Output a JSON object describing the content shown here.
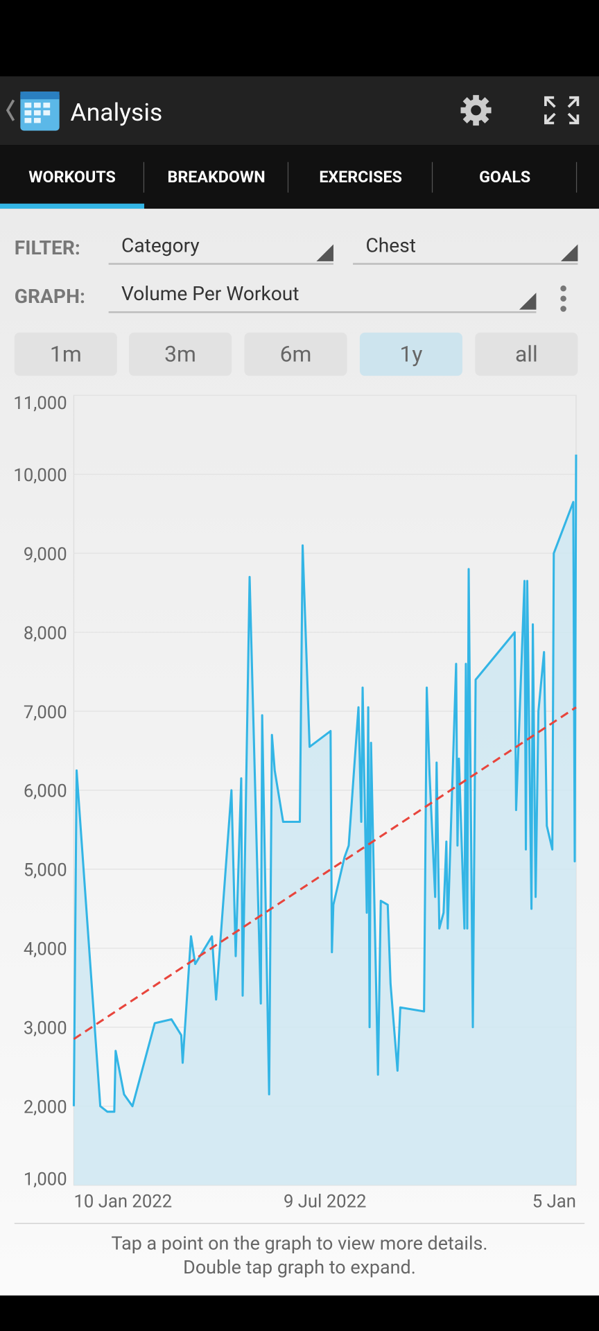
{
  "app_bar": {
    "title": "Analysis"
  },
  "tabs": [
    "WORKOUTS",
    "BREAKDOWN",
    "EXERCISES",
    "GOALS"
  ],
  "filter": {
    "label": "FILTER:",
    "category": "Category",
    "value": "Chest"
  },
  "graph": {
    "label": "GRAPH:",
    "value": "Volume Per Workout"
  },
  "ranges": [
    "1m",
    "3m",
    "6m",
    "1y",
    "all"
  ],
  "chart_data": {
    "type": "line",
    "x": [
      0,
      2,
      19,
      24,
      29,
      30,
      36,
      42,
      58,
      70,
      77,
      78,
      84,
      87,
      99,
      102,
      113,
      116,
      120,
      121,
      126,
      134,
      135,
      140,
      142,
      144,
      150,
      162,
      164,
      169,
      184,
      185,
      186,
      194,
      197,
      204,
      206,
      207,
      210,
      211,
      212,
      213,
      218,
      220,
      225,
      227,
      232,
      234,
      251,
      253,
      255,
      259,
      260,
      262,
      265,
      267,
      268,
      274,
      275,
      276,
      280,
      281,
      282,
      283,
      286,
      288,
      316,
      317,
      323,
      324,
      325,
      328,
      329,
      331,
      333,
      337,
      339,
      343,
      344,
      358,
      359,
      360
    ],
    "values": [
      2000,
      6250,
      2000,
      1930,
      1930,
      2700,
      2150,
      2000,
      3050,
      3100,
      2900,
      2550,
      4150,
      3800,
      4150,
      3350,
      6000,
      3900,
      6150,
      3400,
      8700,
      3300,
      6950,
      2150,
      6700,
      6250,
      5600,
      5600,
      9100,
      6550,
      6750,
      3950,
      4550,
      5150,
      5300,
      7050,
      5600,
      7300,
      4450,
      7050,
      3000,
      6600,
      2400,
      4600,
      4550,
      3550,
      2450,
      3250,
      3200,
      7300,
      6200,
      4650,
      6350,
      4250,
      4450,
      5350,
      4250,
      7600,
      5300,
      6400,
      4250,
      7600,
      4250,
      8800,
      3000,
      7400,
      8000,
      5750,
      8650,
      5250,
      8650,
      4500,
      8100,
      4650,
      7000,
      7750,
      5550,
      5250,
      9000,
      9650,
      5100,
      10250
    ],
    "color": "#33b5e5",
    "fill_color": "#cfe8f2",
    "trendline": {
      "x": [
        0,
        360
      ],
      "values": [
        2850,
        7050
      ],
      "color": "#e8453c"
    },
    "xlim": [
      0,
      360
    ],
    "xticks": [
      {
        "value": 0,
        "label": "10 Jan 2022"
      },
      {
        "value": 180,
        "label": "9 Jul 2022"
      },
      {
        "value": 360,
        "label": "5 Jan"
      }
    ],
    "ylim": [
      1000,
      11000
    ],
    "yticks": [
      {
        "value": 1000,
        "label": "1,000"
      },
      {
        "value": 2000,
        "label": "2,000"
      },
      {
        "value": 3000,
        "label": "3,000"
      },
      {
        "value": 4000,
        "label": "4,000"
      },
      {
        "value": 5000,
        "label": "5,000"
      },
      {
        "value": 6000,
        "label": "6,000"
      },
      {
        "value": 7000,
        "label": "7,000"
      },
      {
        "value": 8000,
        "label": "8,000"
      },
      {
        "value": 9000,
        "label": "9,000"
      },
      {
        "value": 10000,
        "label": "10,000"
      },
      {
        "value": 11000,
        "label": "11,000"
      }
    ],
    "grid": true
  },
  "footer": [
    "Tap a point on the graph to view more details.",
    "Double tap graph to expand."
  ]
}
